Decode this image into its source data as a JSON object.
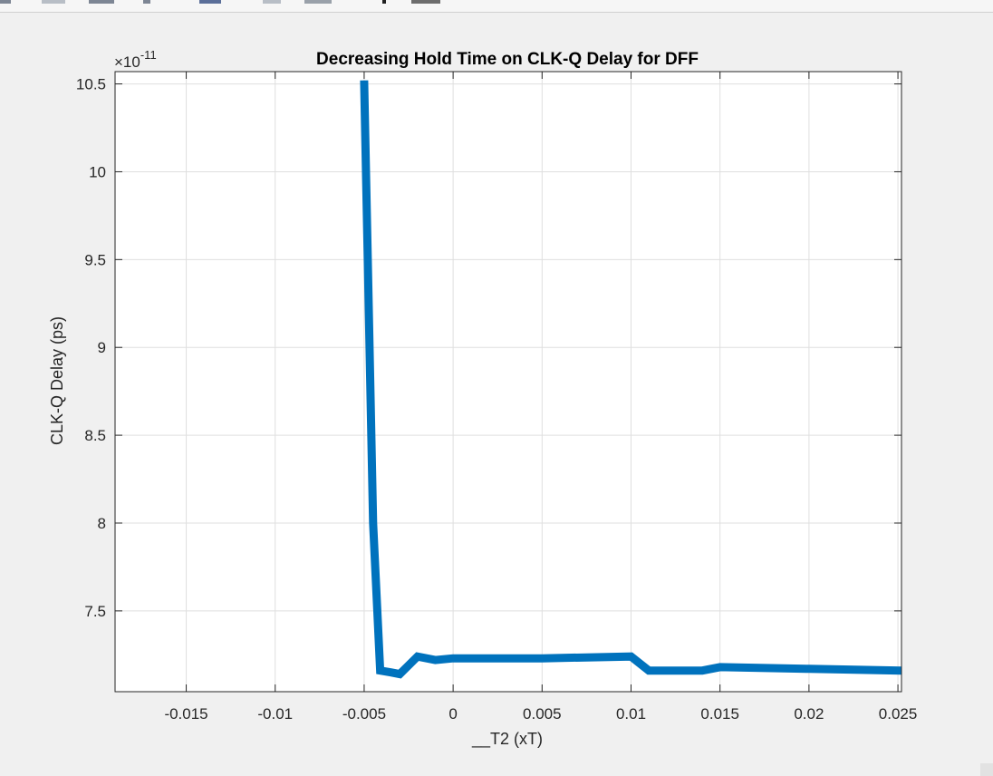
{
  "toolbar": {
    "buttons": [
      "",
      "",
      "",
      "",
      "",
      "",
      "",
      ""
    ]
  },
  "chart_data": {
    "type": "line",
    "title": "Decreasing Hold Time on CLK-Q Delay for DFF",
    "xlabel": "__T2 (xT)",
    "ylabel": "CLK-Q Delay (ps)",
    "y_exponent_label": "×10",
    "y_exponent_power": "-11",
    "xlim": [
      -0.019,
      0.0252
    ],
    "ylim": [
      7.04,
      10.57
    ],
    "x_ticks": [
      -0.015,
      -0.01,
      -0.005,
      0,
      0.005,
      0.01,
      0.015,
      0.02,
      0.025
    ],
    "x_tick_labels": [
      "-0.015",
      "-0.01",
      "-0.005",
      "0",
      "0.005",
      "0.01",
      "0.015",
      "0.02",
      "0.025"
    ],
    "y_ticks": [
      7.5,
      8,
      8.5,
      9,
      9.5,
      10,
      10.5
    ],
    "y_tick_labels": [
      "7.5",
      "8",
      "8.5",
      "9",
      "9.5",
      "10",
      "10.5"
    ],
    "grid": true,
    "line_color": "#0072bd",
    "series": [
      {
        "x": [
          -0.005,
          -0.0045,
          -0.0041,
          -0.0035,
          -0.003,
          -0.002,
          -0.001,
          0,
          0.005,
          0.01,
          0.011,
          0.014,
          0.015,
          0.02,
          0.0252
        ],
        "y": [
          10.52,
          8.0,
          7.16,
          7.15,
          7.14,
          7.24,
          7.22,
          7.23,
          7.23,
          7.24,
          7.16,
          7.16,
          7.18,
          7.17,
          7.16
        ]
      }
    ]
  }
}
